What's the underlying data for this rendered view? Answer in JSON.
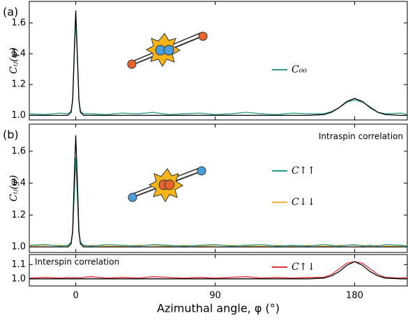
{
  "chart_data": [
    {
      "type": "line",
      "panel_label": "(a)",
      "ylabel": "Cᵢⱼ(φ)",
      "x": [
        -30,
        -20,
        -10,
        -5,
        -3,
        -2,
        -1,
        0,
        1,
        2,
        3,
        5,
        10,
        20,
        30,
        40,
        50,
        60,
        70,
        80,
        90,
        100,
        110,
        120,
        130,
        140,
        150,
        160,
        165,
        170,
        175,
        180,
        185,
        190,
        195,
        200,
        210,
        214
      ],
      "series": [
        {
          "color": "#000000",
          "values": [
            1,
            1,
            1,
            1,
            1.02,
            1.1,
            1.4,
            1.68,
            1.4,
            1.1,
            1.02,
            1,
            1,
            1,
            1,
            1,
            1,
            1,
            1,
            1,
            1,
            1,
            1,
            1,
            1,
            1,
            1,
            1.005,
            1.02,
            1.05,
            1.09,
            1.11,
            1.09,
            1.05,
            1.02,
            1.005,
            1,
            1
          ]
        },
        {
          "name": "C₀₀",
          "color": "#2a9d8a",
          "values": [
            1.01,
            1.005,
            1.015,
            1.01,
            1.03,
            1.1,
            1.38,
            1.62,
            1.38,
            1.1,
            1.03,
            1.01,
            1.01,
            1.005,
            1.015,
            1.01,
            1.02,
            1.005,
            1.01,
            1.015,
            1.005,
            1.01,
            1.02,
            1.01,
            1.005,
            1.015,
            1.01,
            1.01,
            1.025,
            1.05,
            1.085,
            1.1,
            1.085,
            1.055,
            1.02,
            1.01,
            1.015,
            1.005
          ]
        }
      ],
      "xlim": [
        -30,
        214
      ],
      "xticks": [
        0,
        90,
        180
      ],
      "ylim": [
        0.97,
        1.74
      ],
      "yticks": [
        {
          "value": 1,
          "label": "1.0"
        },
        1.2,
        1.4,
        1.6
      ]
    },
    {
      "type": "line",
      "panel_label": "(b)",
      "ylabel": "Cᵢⱼ(φ)",
      "annotation": "Intraspin correlation",
      "x": [
        -30,
        -20,
        -10,
        -5,
        -3,
        -2,
        -1,
        0,
        1,
        2,
        3,
        5,
        10,
        20,
        30,
        40,
        50,
        60,
        70,
        80,
        90,
        100,
        110,
        120,
        130,
        140,
        150,
        160,
        165,
        170,
        175,
        180,
        185,
        190,
        195,
        200,
        210,
        214
      ],
      "series": [
        {
          "color": "#000000",
          "values": [
            1,
            1,
            1,
            1,
            1.02,
            1.1,
            1.42,
            1.7,
            1.42,
            1.1,
            1.02,
            1,
            1,
            1,
            1,
            1,
            1,
            1,
            1,
            1,
            1,
            1,
            1,
            1,
            1,
            1,
            1,
            1,
            1,
            1,
            1,
            1,
            1,
            1,
            1,
            1,
            1,
            1
          ]
        },
        {
          "name": "C↑↑",
          "color": "#2a9d8a",
          "values": [
            1.01,
            1.015,
            1.005,
            1.01,
            1.03,
            1.09,
            1.32,
            1.56,
            1.32,
            1.09,
            1.03,
            1.01,
            1.005,
            1.015,
            1.01,
            1.005,
            1.015,
            1.01,
            1.005,
            1.01,
            1.015,
            1.005,
            1.01,
            1.015,
            1.005,
            1.01,
            1.005,
            1.015,
            1.01,
            1.005,
            1.01,
            1.015,
            1.005,
            1.01,
            1.005,
            1.015,
            1.01,
            1.005
          ]
        },
        {
          "name": "C↓↓",
          "color": "#f0b23c",
          "values": [
            1.005,
            1.01,
            1.01,
            1.005,
            1.03,
            1.09,
            1.31,
            1.55,
            1.31,
            1.09,
            1.03,
            1.005,
            1.01,
            1.005,
            1.005,
            1.01,
            1.01,
            1.005,
            1.01,
            1.005,
            1.01,
            1.01,
            1.005,
            1.005,
            1.01,
            1.005,
            1.01,
            1.005,
            1.005,
            1.01,
            1.01,
            1.01,
            1.01,
            1.005,
            1.01,
            1.005,
            1.005,
            1.01
          ]
        }
      ],
      "xlim": [
        -30,
        214
      ],
      "xticks": [
        0,
        90,
        180
      ],
      "ylim": [
        0.965,
        1.77
      ],
      "yticks": [
        {
          "value": 1,
          "label": "1.0"
        },
        1.2,
        1.4,
        1.6
      ]
    },
    {
      "type": "line",
      "annotation": "Interspin correlation",
      "xlabel": "Azimuthal angle, φ (°)",
      "x": [
        -30,
        -20,
        -10,
        -5,
        -3,
        -2,
        -1,
        0,
        1,
        2,
        3,
        5,
        10,
        20,
        30,
        40,
        50,
        60,
        70,
        80,
        90,
        100,
        110,
        120,
        130,
        140,
        150,
        160,
        165,
        170,
        175,
        180,
        185,
        190,
        195,
        200,
        210,
        214
      ],
      "series": [
        {
          "color": "#000000",
          "values": [
            1,
            1,
            1,
            1,
            1,
            1,
            1,
            1,
            1,
            1,
            1,
            1,
            1,
            1,
            1,
            1,
            1,
            1,
            1,
            1,
            1,
            1,
            1,
            1,
            1,
            1,
            1,
            1.005,
            1.02,
            1.05,
            1.095,
            1.12,
            1.095,
            1.05,
            1.02,
            1.005,
            1,
            1
          ]
        },
        {
          "name": "C↑↓",
          "color": "#e0313a",
          "values": [
            1.005,
            1.01,
            1.005,
            1.01,
            1.005,
            1.01,
            1.005,
            1.01,
            1.005,
            1.01,
            1.005,
            1.01,
            1.015,
            1.005,
            1.01,
            1.005,
            1.015,
            1.01,
            1.005,
            1.01,
            1.005,
            1.01,
            1.015,
            1.005,
            1.01,
            1.005,
            1.01,
            1.01,
            1.03,
            1.07,
            1.11,
            1.12,
            1.11,
            1.07,
            1.03,
            1.01,
            1.005,
            1.01
          ]
        }
      ],
      "xlim": [
        -30,
        214
      ],
      "xticks": [
        0,
        90,
        180
      ],
      "ylim": [
        0.95,
        1.17
      ],
      "yticks": [
        {
          "value": 1,
          "label": "1.0"
        },
        1.1
      ]
    }
  ]
}
